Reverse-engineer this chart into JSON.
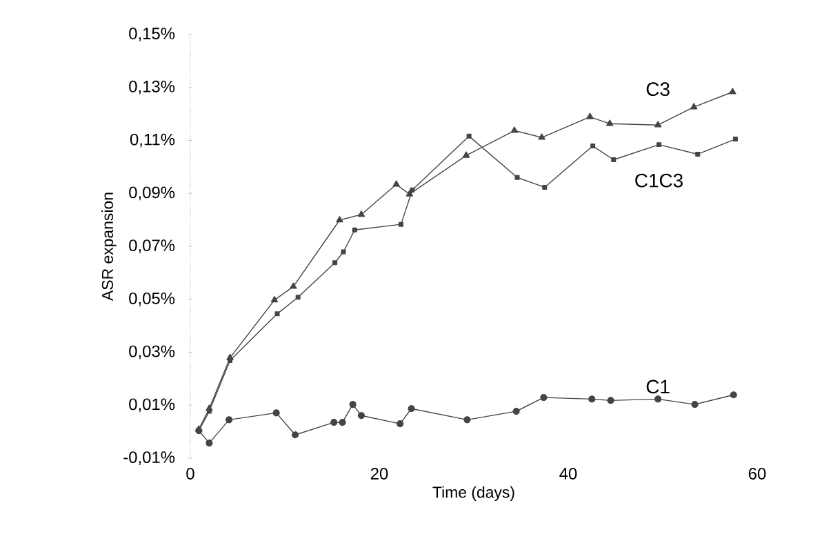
{
  "chart_data": {
    "type": "line",
    "xlabel": "Time (days)",
    "ylabel": "ASR expansion",
    "xlim": [
      0,
      60
    ],
    "ylim": [
      -0.01,
      0.15
    ],
    "xticks": [
      0,
      20,
      40,
      60
    ],
    "yticks": [
      {
        "value": -0.01,
        "label": "-0,01%"
      },
      {
        "value": 0.01,
        "label": "0,01%"
      },
      {
        "value": 0.03,
        "label": "0,03%"
      },
      {
        "value": 0.05,
        "label": "0,05%"
      },
      {
        "value": 0.07,
        "label": "0,07%"
      },
      {
        "value": 0.09,
        "label": "0,09%"
      },
      {
        "value": 0.11,
        "label": "0,11%"
      },
      {
        "value": 0.13,
        "label": "0,13%"
      },
      {
        "value": 0.15,
        "label": "0,15%"
      }
    ],
    "grid": false,
    "legend": false,
    "series": [
      {
        "name": "C3",
        "color": "#444444",
        "marker": "triangle",
        "x": [
          0.9,
          2.0,
          4.2,
          8.9,
          10.9,
          15.8,
          18.1,
          21.8,
          23.2,
          29.2,
          34.3,
          37.2,
          42.3,
          44.4,
          49.5,
          53.3,
          57.4
        ],
        "values": [
          0.0009,
          0.0087,
          0.0279,
          0.0497,
          0.0548,
          0.0799,
          0.082,
          0.0934,
          0.0897,
          0.1043,
          0.1137,
          0.1111,
          0.1189,
          0.1163,
          0.1158,
          0.1226,
          0.1283
        ]
      },
      {
        "name": "C1C3",
        "color": "#444444",
        "marker": "square",
        "x": [
          0.9,
          2.0,
          4.2,
          9.2,
          11.4,
          15.3,
          16.2,
          17.4,
          22.3,
          23.5,
          29.5,
          34.6,
          37.5,
          42.6,
          44.8,
          49.6,
          53.7,
          57.7
        ],
        "values": [
          0.0004,
          0.0077,
          0.0269,
          0.0445,
          0.0508,
          0.0638,
          0.0679,
          0.0762,
          0.0783,
          0.0913,
          0.1116,
          0.096,
          0.0923,
          0.1079,
          0.1027,
          0.1084,
          0.1048,
          0.1105
        ]
      },
      {
        "name": "C1",
        "color": "#444444",
        "marker": "circle",
        "x": [
          0.9,
          2.0,
          4.1,
          9.1,
          11.1,
          15.2,
          16.1,
          17.2,
          18.1,
          22.2,
          23.4,
          29.3,
          34.5,
          37.4,
          42.5,
          44.5,
          49.5,
          53.4,
          57.5
        ],
        "values": [
          0.0004,
          -0.0043,
          0.0045,
          0.0071,
          -0.0012,
          0.0035,
          0.0035,
          0.0103,
          0.0061,
          0.003,
          0.0087,
          0.0045,
          0.0077,
          0.0129,
          0.0123,
          0.0118,
          0.0123,
          0.0103,
          0.0139
        ]
      }
    ]
  }
}
